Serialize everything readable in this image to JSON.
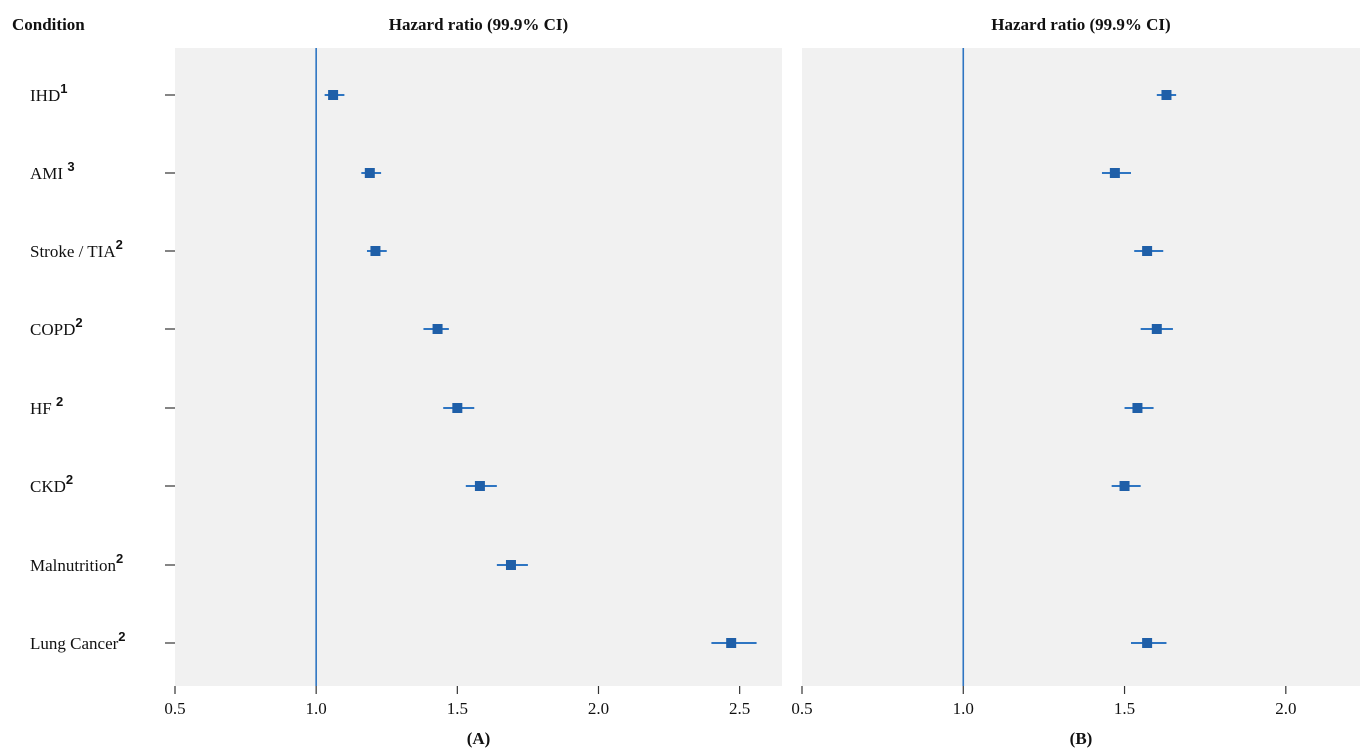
{
  "column_header": "Condition",
  "conditions": [
    {
      "label": "IHD",
      "sup": "1"
    },
    {
      "label": "AMI ",
      "sup": "3"
    },
    {
      "label": "Stroke / TIA",
      "sup": "2"
    },
    {
      "label": "COPD",
      "sup": "2"
    },
    {
      "label": "HF ",
      "sup": "2"
    },
    {
      "label": "CKD",
      "sup": "2"
    },
    {
      "label": "Malnutrition",
      "sup": "2"
    },
    {
      "label": "Lung Cancer",
      "sup": "2"
    }
  ],
  "colors": {
    "panel_bg": "#f1f1f1",
    "marker": "#1f5fa8",
    "ci_line": "#2e75c2",
    "reference_line": "#2e75c2",
    "text": "#111111"
  },
  "chart_data": [
    {
      "type": "forest",
      "panel_label": "(A)",
      "title": "Hazard ratio (99.9% CI)",
      "xlim": [
        0.5,
        2.65
      ],
      "xticks": [
        0.5,
        1.0,
        1.5,
        2.0,
        2.5
      ],
      "xtick_labels": [
        "0.5",
        "1.0",
        "1.5",
        "2.0",
        "2.5"
      ],
      "reference": 1.0,
      "categories": [
        "IHD",
        "AMI",
        "Stroke / TIA",
        "COPD",
        "HF",
        "CKD",
        "Malnutrition",
        "Lung Cancer"
      ],
      "values": [
        1.06,
        1.19,
        1.21,
        1.43,
        1.5,
        1.58,
        1.69,
        2.47
      ],
      "ci_low": [
        1.03,
        1.16,
        1.18,
        1.38,
        1.45,
        1.53,
        1.64,
        2.4
      ],
      "ci_high": [
        1.1,
        1.23,
        1.25,
        1.47,
        1.56,
        1.64,
        1.75,
        2.56
      ]
    },
    {
      "type": "forest",
      "panel_label": "(B)",
      "title": "Hazard ratio (99.9% CI)",
      "xlim": [
        0.5,
        2.23
      ],
      "xticks": [
        0.5,
        1.0,
        1.5,
        2.0
      ],
      "xtick_labels": [
        "0.5",
        "1.0",
        "1.5",
        "2.0"
      ],
      "reference": 1.0,
      "categories": [
        "IHD",
        "AMI",
        "Stroke / TIA",
        "COPD",
        "HF",
        "CKD",
        "Malnutrition",
        "Lung Cancer"
      ],
      "values": [
        1.63,
        1.47,
        1.57,
        1.6,
        1.54,
        1.5,
        null,
        1.57
      ],
      "ci_low": [
        1.6,
        1.43,
        1.53,
        1.55,
        1.5,
        1.46,
        null,
        1.52
      ],
      "ci_high": [
        1.66,
        1.52,
        1.62,
        1.65,
        1.59,
        1.55,
        null,
        1.63
      ]
    }
  ]
}
